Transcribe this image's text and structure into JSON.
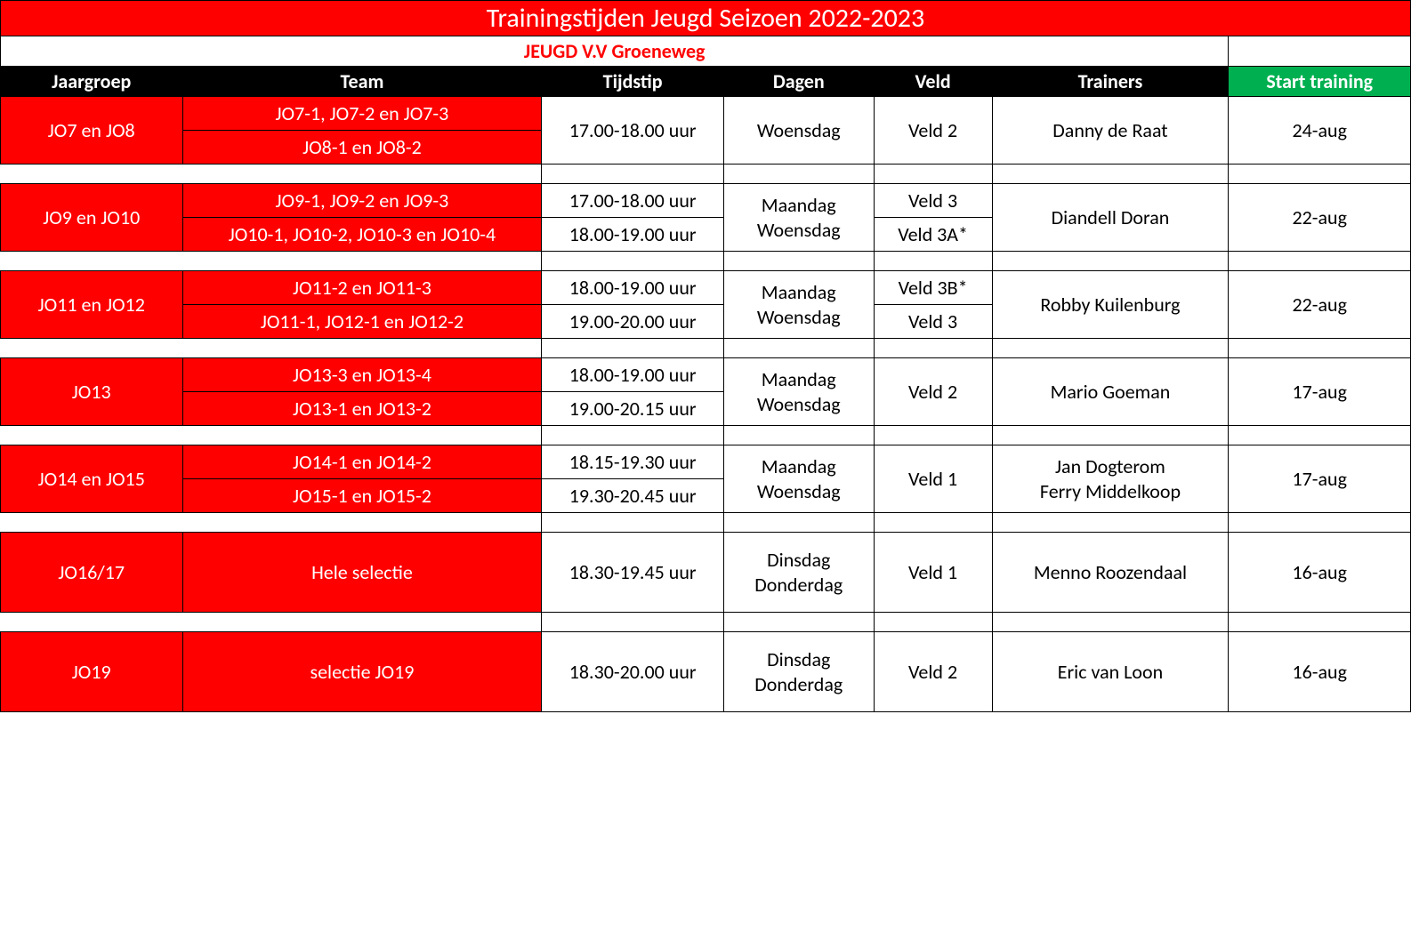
{
  "title": "Trainingstijden Jeugd Seizoen 2022-2023",
  "subtitle": "JEUGD V.V Groeneweg",
  "columns": [
    "Jaargroep",
    "Team",
    "Tijdstip",
    "Dagen",
    "Veld",
    "Trainers",
    "Start training"
  ],
  "colors": {
    "red": "#ff0000",
    "black": "#000000",
    "white": "#ffffff",
    "green": "#00b050"
  },
  "groups": [
    {
      "jaargroep": "JO7 en JO8",
      "teams": [
        "JO7-1, JO7-2 en JO7-3",
        "JO8-1 en JO8-2"
      ],
      "tijdstip": [
        "17.00-18.00 uur"
      ],
      "tijdstip_merged": true,
      "dagen": "Woensdag",
      "veld": [
        "Veld 2"
      ],
      "veld_merged": true,
      "trainers": "Danny de Raat",
      "start": "24-aug"
    },
    {
      "jaargroep": "JO9 en JO10",
      "teams": [
        "JO9-1, JO9-2 en JO9-3",
        "JO10-1, JO10-2, JO10-3 en JO10-4"
      ],
      "tijdstip": [
        "17.00-18.00 uur",
        "18.00-19.00 uur"
      ],
      "tijdstip_merged": false,
      "dagen": "Maandag\nWoensdag",
      "veld": [
        "Veld 3",
        "Veld 3A*"
      ],
      "veld_merged": false,
      "trainers": "Diandell Doran",
      "start": "22-aug"
    },
    {
      "jaargroep": "JO11 en JO12",
      "teams": [
        "JO11-2 en JO11-3",
        "JO11-1, JO12-1 en JO12-2"
      ],
      "tijdstip": [
        "18.00-19.00 uur",
        "19.00-20.00 uur"
      ],
      "tijdstip_merged": false,
      "dagen": "Maandag\nWoensdag",
      "veld": [
        "Veld 3B*",
        "Veld 3"
      ],
      "veld_merged": false,
      "trainers": "Robby Kuilenburg",
      "start": "22-aug"
    },
    {
      "jaargroep": "JO13",
      "teams": [
        "JO13-3 en JO13-4",
        "JO13-1 en JO13-2"
      ],
      "tijdstip": [
        "18.00-19.00 uur",
        "19.00-20.15 uur"
      ],
      "tijdstip_merged": false,
      "dagen": "Maandag\nWoensdag",
      "veld": [
        "Veld 2"
      ],
      "veld_merged": true,
      "trainers": "Mario Goeman",
      "start": "17-aug"
    },
    {
      "jaargroep": "JO14 en JO15",
      "teams": [
        "JO14-1 en JO14-2",
        "JO15-1 en JO15-2"
      ],
      "tijdstip": [
        "18.15-19.30 uur",
        "19.30-20.45 uur"
      ],
      "tijdstip_merged": false,
      "dagen": "Maandag\nWoensdag",
      "veld": [
        "Veld 1"
      ],
      "veld_merged": true,
      "trainers": "Jan Dogterom\nFerry Middelkoop",
      "start": "17-aug"
    },
    {
      "jaargroep": "JO16/17",
      "teams": [
        "Hele selectie"
      ],
      "tijdstip": [
        "18.30-19.45 uur"
      ],
      "tijdstip_merged": true,
      "dagen": "Dinsdag\nDonderdag",
      "veld": [
        "Veld 1"
      ],
      "veld_merged": true,
      "trainers": "Menno Roozendaal",
      "start": "16-aug",
      "single_tall": true
    },
    {
      "jaargroep": "JO19",
      "teams": [
        "selectie JO19"
      ],
      "tijdstip": [
        "18.30-20.00 uur"
      ],
      "tijdstip_merged": true,
      "dagen": "Dinsdag\nDonderdag",
      "veld": [
        "Veld 2"
      ],
      "veld_merged": true,
      "trainers": "Eric van Loon",
      "start": "16-aug",
      "single_tall": true
    }
  ]
}
